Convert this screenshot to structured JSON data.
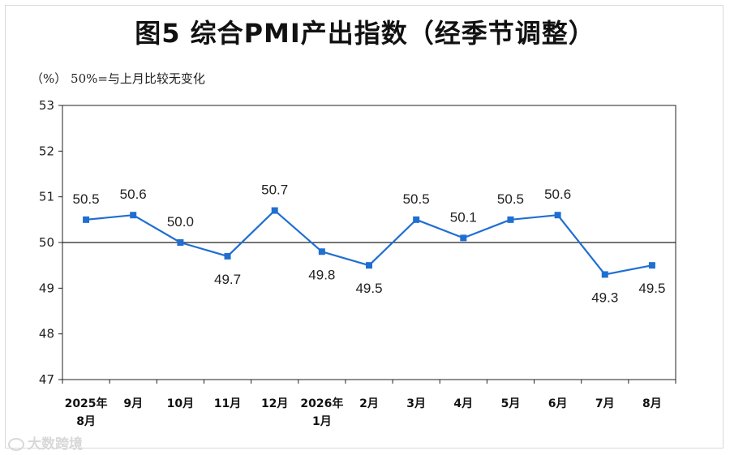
{
  "chart_data": {
    "type": "line",
    "title": "图5 综合PMI产出指数（经季节调整）",
    "unit_note": "（%） 50%=与上月比较无变化",
    "categories": [
      [
        "2025年",
        "8月"
      ],
      [
        "9月"
      ],
      [
        "10月"
      ],
      [
        "11月"
      ],
      [
        "12月"
      ],
      [
        "2026年",
        "1月"
      ],
      [
        "2月"
      ],
      [
        "3月"
      ],
      [
        "4月"
      ],
      [
        "5月"
      ],
      [
        "6月"
      ],
      [
        "7月"
      ],
      [
        "8月"
      ]
    ],
    "series": [
      {
        "values": [
          50.5,
          50.6,
          50.0,
          49.7,
          50.7,
          49.8,
          49.5,
          50.5,
          50.1,
          50.5,
          50.6,
          49.3,
          49.5
        ],
        "labels": [
          "50.5",
          "50.6",
          "50.0",
          "49.7",
          "50.7",
          "49.8",
          "49.5",
          "50.5",
          "50.1",
          "50.5",
          "50.6",
          "49.3",
          "49.5"
        ],
        "label_positions": [
          "above",
          "above",
          "above",
          "below",
          "above",
          "below",
          "below",
          "above",
          "above",
          "above",
          "above",
          "below",
          "below"
        ],
        "color": "#1f6fd1"
      }
    ],
    "ylim": [
      47,
      53
    ],
    "yticks": [
      47,
      48,
      49,
      50,
      51,
      52,
      53
    ],
    "reference_line": 50,
    "grid": false,
    "legend": "none"
  },
  "watermark": "大数跨境"
}
